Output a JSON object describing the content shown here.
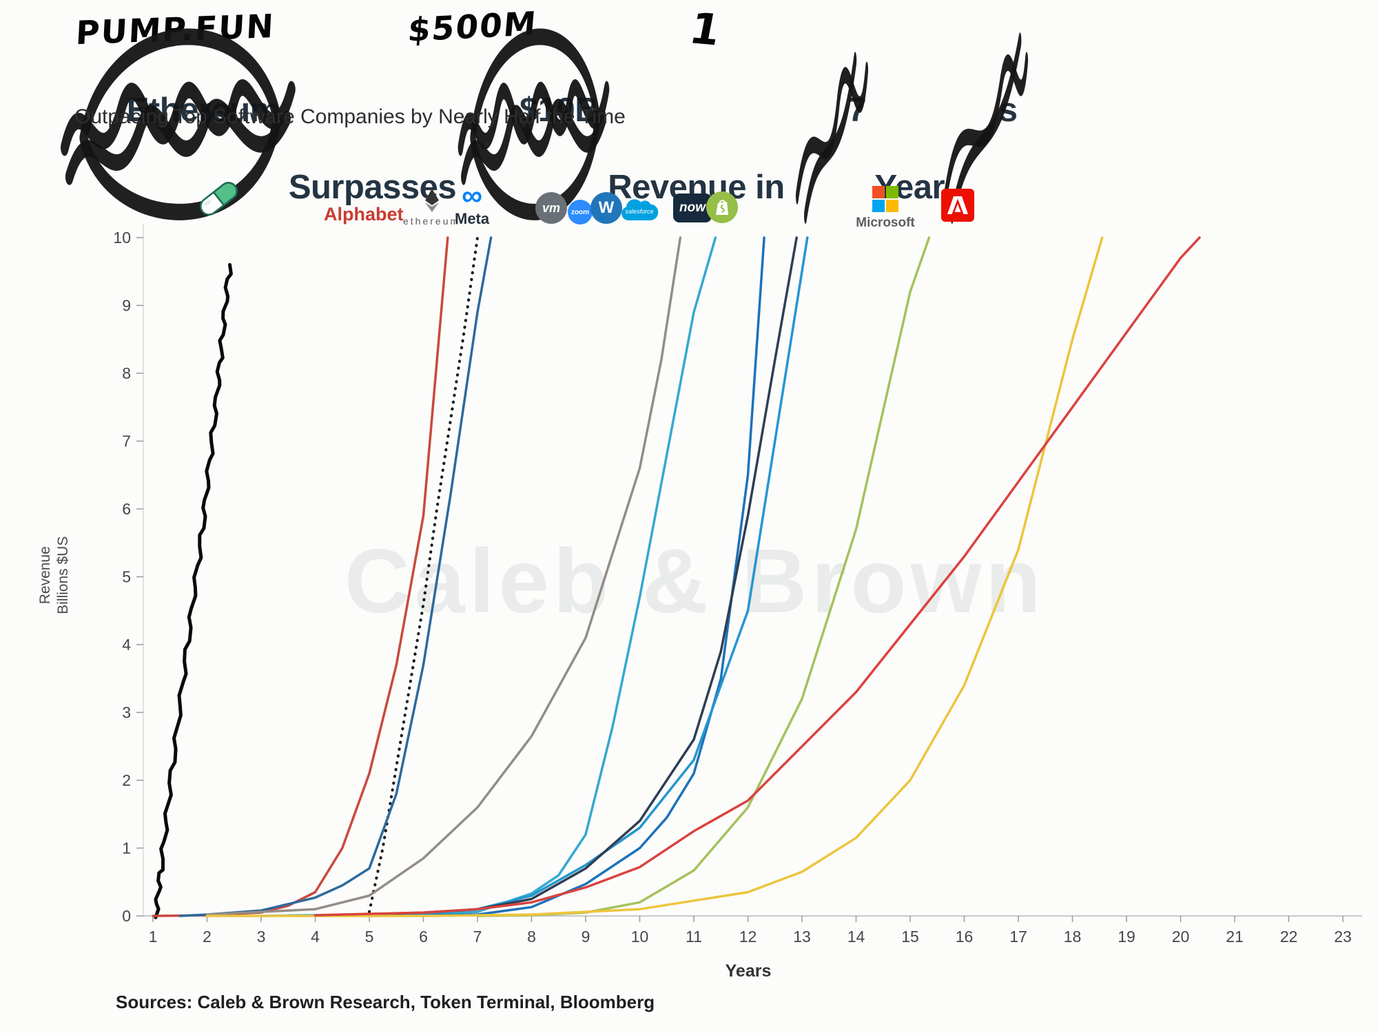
{
  "annotations": {
    "pump_fun": "PUMP.FUN",
    "revenue_override": "$500M",
    "years_override": "1"
  },
  "title": {
    "parts": [
      "Ethereum",
      " Surpasses ",
      "$10B",
      " Revenue in ",
      "7",
      " Year",
      "s"
    ]
  },
  "subtitle": "Outpacing Top Software Companies by Nearly Half the Time",
  "watermark": "Caleb & Brown",
  "sources": "Sources: Caleb & Brown Research, Token Terminal, Bloomberg",
  "logos": {
    "alphabet": "Alphabet",
    "ethereum": "ethereum",
    "meta": "Meta",
    "vmware": "vm",
    "zoom": "zoom",
    "workday": "W",
    "salesforce": "salesforce",
    "servicenow": "now",
    "microsoft": "Microsoft"
  },
  "colors": {
    "title_text": "#243442",
    "handwriting": "#050505",
    "alphabet_red": "#c63d31",
    "meta_blue": "#0082fb",
    "zoom_blue": "#2d8cff",
    "workday_blue": "#2175ba",
    "salesforce_blue": "#00a1e0",
    "servicenow_navy": "#17293c",
    "shopify_green": "#95bf47",
    "adobe_red": "#eb1000",
    "microsoft_squares": [
      "#f25022",
      "#7fba00",
      "#00a4ef",
      "#ffb900"
    ],
    "pill_green": "#53c08a"
  },
  "chart_data": {
    "type": "line",
    "title": "Ethereum Surpasses $10B Revenue in 7 Years (hand-edited to: PUMP.FUN Surpasses $500M Revenue in 1 Year)",
    "subtitle": "Outpacing Top Software Companies by Nearly Half the Time",
    "xlabel": "Years",
    "ylabel": "Revenue Billions $US",
    "xlim": [
      1,
      23
    ],
    "ylim": [
      0,
      10
    ],
    "xticks": [
      1,
      2,
      3,
      4,
      5,
      6,
      7,
      8,
      9,
      10,
      11,
      12,
      13,
      14,
      15,
      16,
      17,
      18,
      19,
      20,
      21,
      22,
      23
    ],
    "yticks": [
      0,
      1,
      2,
      3,
      4,
      5,
      6,
      7,
      8,
      9,
      10
    ],
    "grid": false,
    "legend_position": "company logos placed above each line near its top",
    "series": [
      {
        "name": "pump.fun (hand-drawn annotation)",
        "color": "#0a0a0a",
        "style": "hand",
        "width": 5,
        "x": [
          1.05,
          1.15,
          1.3,
          1.5,
          1.7,
          1.9,
          2.05,
          2.2,
          2.3,
          2.42
        ],
        "y": [
          0,
          0.7,
          1.8,
          3.1,
          4.4,
          5.6,
          6.7,
          7.8,
          8.7,
          9.6
        ]
      },
      {
        "name": "Alphabet",
        "color": "#c9493f",
        "style": "solid",
        "x": [
          1,
          2,
          3,
          3.5,
          4,
          4.5,
          5,
          5.5,
          6,
          6.45
        ],
        "y": [
          0,
          0.01,
          0.05,
          0.15,
          0.35,
          1.0,
          2.1,
          3.7,
          5.9,
          10
        ]
      },
      {
        "name": "Ethereum",
        "color": "#1a1a1a",
        "style": "dotted",
        "width": 4.2,
        "x": [
          5,
          5.25,
          5.5,
          5.75,
          6,
          6.25,
          6.5,
          6.75,
          7
        ],
        "y": [
          0.06,
          1.0,
          2.2,
          3.4,
          4.6,
          6.0,
          7.3,
          8.6,
          10
        ]
      },
      {
        "name": "Meta",
        "color": "#2d6a9b",
        "style": "solid",
        "x": [
          1.5,
          2,
          3,
          4,
          4.5,
          5,
          5.5,
          6,
          6.5,
          7,
          7.25
        ],
        "y": [
          0,
          0.02,
          0.08,
          0.27,
          0.45,
          0.7,
          1.8,
          3.7,
          6.2,
          8.9,
          10
        ]
      },
      {
        "name": "VMware",
        "color": "#938d86",
        "style": "solid",
        "x": [
          2,
          3,
          4,
          5,
          6,
          7,
          8,
          9,
          10,
          10.4,
          10.75
        ],
        "y": [
          0.02,
          0.06,
          0.1,
          0.3,
          0.85,
          1.6,
          2.65,
          4.1,
          6.6,
          8.2,
          10
        ]
      },
      {
        "name": "Zoom",
        "color": "#35a8d0",
        "style": "solid",
        "x": [
          4,
          5,
          6,
          7,
          8,
          8.5,
          9,
          9.5,
          10,
          10.5,
          11,
          11.4
        ],
        "y": [
          0,
          0.01,
          0.02,
          0.06,
          0.33,
          0.6,
          1.2,
          2.8,
          4.7,
          6.8,
          8.9,
          10
        ]
      },
      {
        "name": "Workday",
        "color": "#1d72b8",
        "style": "solid",
        "x": [
          5,
          6,
          7,
          8,
          9,
          10,
          10.5,
          11,
          11.5,
          12,
          12.3
        ],
        "y": [
          0,
          0.01,
          0.02,
          0.13,
          0.47,
          1.0,
          1.45,
          2.1,
          3.5,
          6.5,
          10
        ]
      },
      {
        "name": "Salesforce",
        "color": "#2496cf",
        "style": "solid",
        "x": [
          3,
          4,
          5,
          6,
          7,
          8,
          9,
          10,
          11,
          12,
          12.7,
          13.1
        ],
        "y": [
          0,
          0.01,
          0.02,
          0.03,
          0.1,
          0.3,
          0.75,
          1.3,
          2.3,
          4.5,
          8,
          10
        ]
      },
      {
        "name": "ServiceNow",
        "color": "#2f3e53",
        "style": "solid",
        "x": [
          5,
          6,
          7,
          8,
          9,
          10,
          11,
          11.5,
          12,
          12.5,
          12.9
        ],
        "y": [
          0.02,
          0.05,
          0.1,
          0.25,
          0.7,
          1.4,
          2.6,
          3.9,
          5.9,
          8.2,
          10
        ]
      },
      {
        "name": "Shopify",
        "color": "#a5c25b",
        "style": "solid",
        "x": [
          7,
          8,
          9,
          10,
          11,
          12,
          13,
          14,
          15,
          15.35
        ],
        "y": [
          0,
          0.01,
          0.05,
          0.2,
          0.67,
          1.6,
          3.2,
          5.7,
          9.2,
          10
        ]
      },
      {
        "name": "Microsoft",
        "color": "#ecc53e",
        "style": "solid",
        "x": [
          2,
          4,
          6,
          8,
          10,
          12,
          13,
          14,
          15,
          16,
          17,
          18,
          18.55
        ],
        "y": [
          0,
          0,
          0,
          0.02,
          0.1,
          0.35,
          0.65,
          1.15,
          2.0,
          3.4,
          5.4,
          8.5,
          10
        ]
      },
      {
        "name": "Adobe",
        "color": "#d8433f",
        "style": "solid",
        "x": [
          4,
          5,
          6,
          7,
          8,
          9,
          10,
          11,
          12,
          13,
          14,
          15,
          16,
          17,
          18,
          19,
          20,
          20.35
        ],
        "y": [
          0.01,
          0.03,
          0.05,
          0.1,
          0.2,
          0.42,
          0.72,
          1.25,
          1.7,
          2.5,
          3.3,
          4.3,
          5.3,
          6.4,
          7.5,
          8.6,
          9.7,
          10
        ]
      }
    ]
  }
}
